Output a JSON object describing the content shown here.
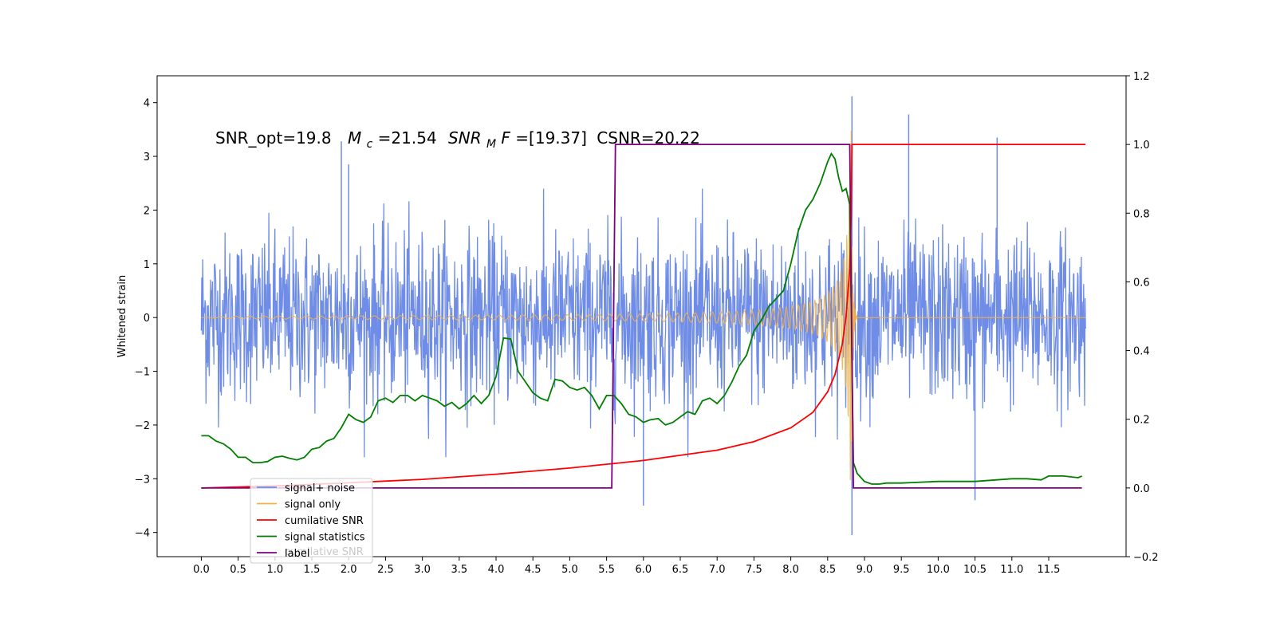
{
  "chart_data": {
    "type": "line",
    "annotation": {
      "snr_opt": "SNR_opt=19.8",
      "mc_sym": "M",
      "mc_sub": "c",
      "mc_val": "=21.54",
      "snrmf_sym": "SNR",
      "snrmf_sub": "M",
      "snrmf_f": "F",
      "snrmf_val": "=[19.37]",
      "csnr": "CSNR=20.22"
    },
    "ylabel_left": "Whitened strain",
    "xlim": [
      -0.6,
      12.55
    ],
    "ylim_left": [
      -4.45,
      4.5
    ],
    "ylim_right": [
      -0.2,
      1.2
    ],
    "x_ticks": [
      "0.0",
      "0.5",
      "1.0",
      "1.5",
      "2.0",
      "2.5",
      "3.0",
      "3.5",
      "4.0",
      "4.5",
      "5.0",
      "5.5",
      "6.0",
      "6.5",
      "7.0",
      "7.5",
      "8.0",
      "8.5",
      "9.0",
      "9.5",
      "10.0",
      "10.5",
      "11.0",
      "11.5"
    ],
    "y_ticks_left": [
      "4",
      "3",
      "2",
      "1",
      "0",
      "−1",
      "−2",
      "−3",
      "−4"
    ],
    "y_ticks_right": [
      "1.2",
      "1.0",
      "0.8",
      "0.6",
      "0.4",
      "0.2",
      "0.0",
      "−0.2"
    ],
    "colors": {
      "signal_noise": "#6f8de6",
      "signal_only": "#f5b042",
      "cumulative_snr": "#ff0000",
      "signal_statistics": "#007f00",
      "label": "#7f007f"
    },
    "series": [
      {
        "name": "signal+ noise",
        "axis": "left",
        "description_values": "noise band roughly between -2.5 and 2.3, peaks up to 4.12 at x=8.83, min -4.05 at x=8.83",
        "x_range": [
          0.0,
          12.0
        ],
        "notable_peaks": [
          [
            1.9,
            3.28
          ],
          [
            2.0,
            2.85
          ],
          [
            9.6,
            3.78
          ],
          [
            10.8,
            3.35
          ],
          [
            8.83,
            4.12
          ],
          [
            8.83,
            -4.05
          ],
          [
            6.0,
            -3.5
          ],
          [
            10.5,
            -3.4
          ]
        ]
      },
      {
        "name": "signal only",
        "axis": "left",
        "chirp": true,
        "x_range": [
          0.0,
          12.0
        ],
        "merger_x": 8.82,
        "peak_amplitude": 3.7
      },
      {
        "name": "cumilative SNR",
        "axis": "right",
        "x": [
          0.0,
          1.0,
          2.0,
          3.0,
          4.0,
          5.0,
          6.0,
          6.5,
          7.0,
          7.5,
          8.0,
          8.3,
          8.5,
          8.6,
          8.7,
          8.75,
          8.8,
          8.82,
          8.83,
          12.0
        ],
        "y": [
          0.0,
          0.006,
          0.015,
          0.025,
          0.04,
          0.058,
          0.08,
          0.095,
          0.11,
          0.135,
          0.175,
          0.22,
          0.28,
          0.33,
          0.42,
          0.5,
          0.64,
          0.8,
          1.0,
          1.0
        ]
      },
      {
        "name": "signal statistics",
        "axis": "left",
        "x": [
          0.0,
          0.1,
          0.2,
          0.3,
          0.4,
          0.5,
          0.6,
          0.7,
          0.8,
          0.9,
          1.0,
          1.1,
          1.2,
          1.3,
          1.4,
          1.5,
          1.6,
          1.7,
          1.8,
          1.9,
          2.0,
          2.1,
          2.2,
          2.3,
          2.4,
          2.5,
          2.6,
          2.7,
          2.8,
          2.9,
          3.0,
          3.1,
          3.2,
          3.3,
          3.4,
          3.5,
          3.6,
          3.7,
          3.8,
          3.9,
          4.0,
          4.1,
          4.2,
          4.3,
          4.4,
          4.5,
          4.6,
          4.7,
          4.8,
          4.9,
          5.0,
          5.1,
          5.2,
          5.3,
          5.4,
          5.5,
          5.6,
          5.7,
          5.8,
          5.9,
          6.0,
          6.1,
          6.2,
          6.3,
          6.4,
          6.5,
          6.6,
          6.7,
          6.8,
          6.9,
          7.0,
          7.1,
          7.2,
          7.3,
          7.4,
          7.5,
          7.6,
          7.7,
          7.8,
          7.9,
          8.0,
          8.1,
          8.2,
          8.3,
          8.4,
          8.5,
          8.55,
          8.6,
          8.65,
          8.7,
          8.75,
          8.8,
          8.85,
          8.9,
          9.0,
          9.1,
          9.2,
          9.3,
          9.5,
          10.0,
          10.5,
          11.0,
          11.2,
          11.4,
          11.5,
          11.7,
          11.9,
          11.95
        ],
        "y": [
          -2.2,
          -2.2,
          -2.3,
          -2.35,
          -2.45,
          -2.6,
          -2.6,
          -2.7,
          -2.7,
          -2.68,
          -2.6,
          -2.58,
          -2.62,
          -2.65,
          -2.6,
          -2.45,
          -2.42,
          -2.3,
          -2.25,
          -2.05,
          -1.8,
          -1.9,
          -1.95,
          -1.85,
          -1.55,
          -1.5,
          -1.58,
          -1.45,
          -1.45,
          -1.55,
          -1.45,
          -1.5,
          -1.55,
          -1.65,
          -1.58,
          -1.7,
          -1.6,
          -1.45,
          -1.6,
          -1.45,
          -1.1,
          -0.38,
          -0.4,
          -1.0,
          -1.2,
          -1.4,
          -1.5,
          -1.55,
          -1.15,
          -1.18,
          -1.3,
          -1.35,
          -1.3,
          -1.45,
          -1.7,
          -1.45,
          -1.45,
          -1.6,
          -1.8,
          -1.85,
          -1.95,
          -1.9,
          -1.88,
          -2.0,
          -1.95,
          -1.85,
          -1.75,
          -1.8,
          -1.55,
          -1.5,
          -1.6,
          -1.45,
          -1.2,
          -0.9,
          -0.7,
          -0.25,
          -0.05,
          0.2,
          0.35,
          0.5,
          1.0,
          1.6,
          2.0,
          2.2,
          2.5,
          2.9,
          3.05,
          2.95,
          2.6,
          2.35,
          2.4,
          2.1,
          -2.7,
          -2.9,
          -3.05,
          -3.1,
          -3.1,
          -3.08,
          -3.08,
          -3.05,
          -3.05,
          -3.0,
          -3.0,
          -3.02,
          -2.95,
          -2.95,
          -2.98,
          -2.95
        ]
      },
      {
        "name": "label",
        "axis": "right",
        "x": [
          0.0,
          5.57,
          5.62,
          8.8,
          8.85,
          11.95
        ],
        "y": [
          0.0,
          0.0,
          1.0,
          1.0,
          0.0,
          0.0
        ]
      }
    ],
    "legend": {
      "placement": "lower-left",
      "entries": [
        "signal+ noise",
        "signal only",
        "cumilative SNR",
        "signal statistics",
        "label"
      ],
      "ghost_text": "cumilative SNR"
    }
  }
}
